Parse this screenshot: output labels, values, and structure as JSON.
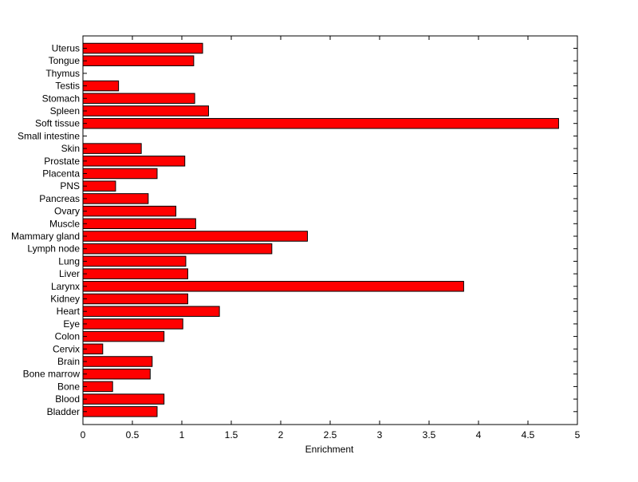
{
  "chart_data": {
    "type": "bar",
    "orientation": "horizontal",
    "title": "",
    "xlabel": "Enrichment",
    "ylabel": "",
    "xlim": [
      0,
      5
    ],
    "x_ticks": [
      "0",
      "0.5",
      "1",
      "1.5",
      "2",
      "2.5",
      "3",
      "3.5",
      "4",
      "4.5",
      "5"
    ],
    "grid": false,
    "bar_color": "#ff0000",
    "bar_edge_color": "#000000",
    "categories": [
      "Uterus",
      "Tongue",
      "Thymus",
      "Testis",
      "Stomach",
      "Spleen",
      "Soft tissue",
      "Small intestine",
      "Skin",
      "Prostate",
      "Placenta",
      "PNS",
      "Pancreas",
      "Ovary",
      "Muscle",
      "Mammary gland",
      "Lymph node",
      "Lung",
      "Liver",
      "Larynx",
      "Kidney",
      "Heart",
      "Eye",
      "Colon",
      "Cervix",
      "Brain",
      "Bone marrow",
      "Bone",
      "Blood",
      "Bladder"
    ],
    "values": [
      1.21,
      1.12,
      0,
      0.36,
      1.13,
      1.27,
      4.81,
      0,
      0.59,
      1.03,
      0.75,
      0.33,
      0.66,
      0.94,
      1.14,
      2.27,
      1.91,
      1.04,
      1.06,
      3.85,
      1.06,
      1.38,
      1.01,
      0.82,
      0.2,
      0.7,
      0.68,
      0.3,
      0.82,
      0.75
    ]
  }
}
